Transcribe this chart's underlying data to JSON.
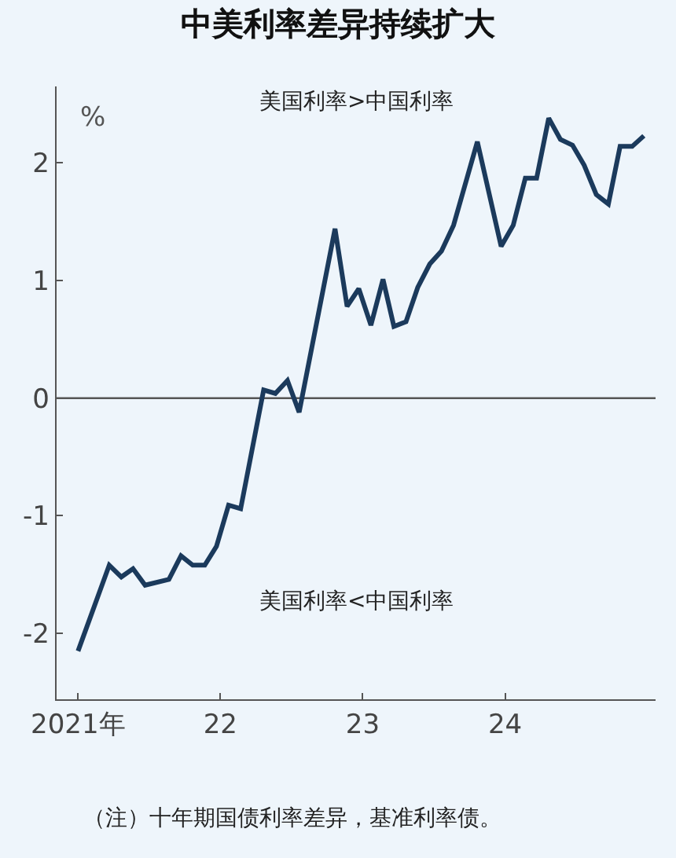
{
  "chart_data": {
    "type": "line",
    "title": "中美利率差异持续扩大",
    "ylabel": "%",
    "x": [
      "2021-01-01",
      "2021-03-22",
      "2021-04-22",
      "2021-05-22",
      "2021-06-22",
      "2021-08-22",
      "2021-09-22",
      "2021-10-22",
      "2021-11-22",
      "2021-12-22",
      "2022-01-22",
      "2022-02-22",
      "2022-04-22",
      "2022-05-22",
      "2022-06-22",
      "2022-07-22",
      "2022-10-22",
      "2022-11-22",
      "2022-12-22",
      "2023-01-22",
      "2023-02-22",
      "2023-03-22",
      "2023-04-22",
      "2023-05-22",
      "2023-06-22",
      "2023-07-22",
      "2023-08-22",
      "2023-10-22",
      "2023-12-22",
      "2024-01-22",
      "2024-02-22",
      "2024-03-22",
      "2024-04-22",
      "2024-05-22",
      "2024-06-22",
      "2024-07-22",
      "2024-08-22",
      "2024-09-22",
      "2024-10-22",
      "2024-11-22",
      "2024-12-22"
    ],
    "series": [
      {
        "color": "#1b3a5c",
        "values": [
          -2.15,
          -1.42,
          -1.52,
          -1.45,
          -1.59,
          -1.54,
          -1.34,
          -1.42,
          -1.42,
          -1.26,
          -0.91,
          -0.94,
          0.07,
          0.04,
          0.15,
          -0.12,
          1.44,
          0.78,
          0.93,
          0.62,
          1.01,
          0.61,
          0.65,
          0.94,
          1.14,
          1.25,
          1.47,
          2.18,
          1.29,
          1.47,
          1.87,
          1.87,
          2.38,
          2.2,
          2.15,
          1.98,
          1.73,
          1.65,
          2.14,
          2.14,
          2.23
        ]
      }
    ],
    "xlim": [
      "2020-11-07",
      "2025-01-21"
    ],
    "ylim": [
      -2.56,
      2.65
    ],
    "xticks": [
      {
        "value": "2021-01-01",
        "label": "2021年"
      },
      {
        "value": "2022-01-01",
        "label": "22"
      },
      {
        "value": "2023-01-01",
        "label": "23"
      },
      {
        "value": "2024-01-01",
        "label": "24"
      }
    ],
    "yticks": [
      -2,
      -1,
      0,
      1,
      2
    ],
    "ref_lines": [
      {
        "axis": "y",
        "value": 0,
        "color": "#555555"
      }
    ],
    "grid": false,
    "marker": "none",
    "line_style": "solid",
    "annotations": [
      "美国利率>中国利率",
      "美国利率<中国利率",
      "（注）十年期国债利率差异，基准利率债。"
    ]
  }
}
